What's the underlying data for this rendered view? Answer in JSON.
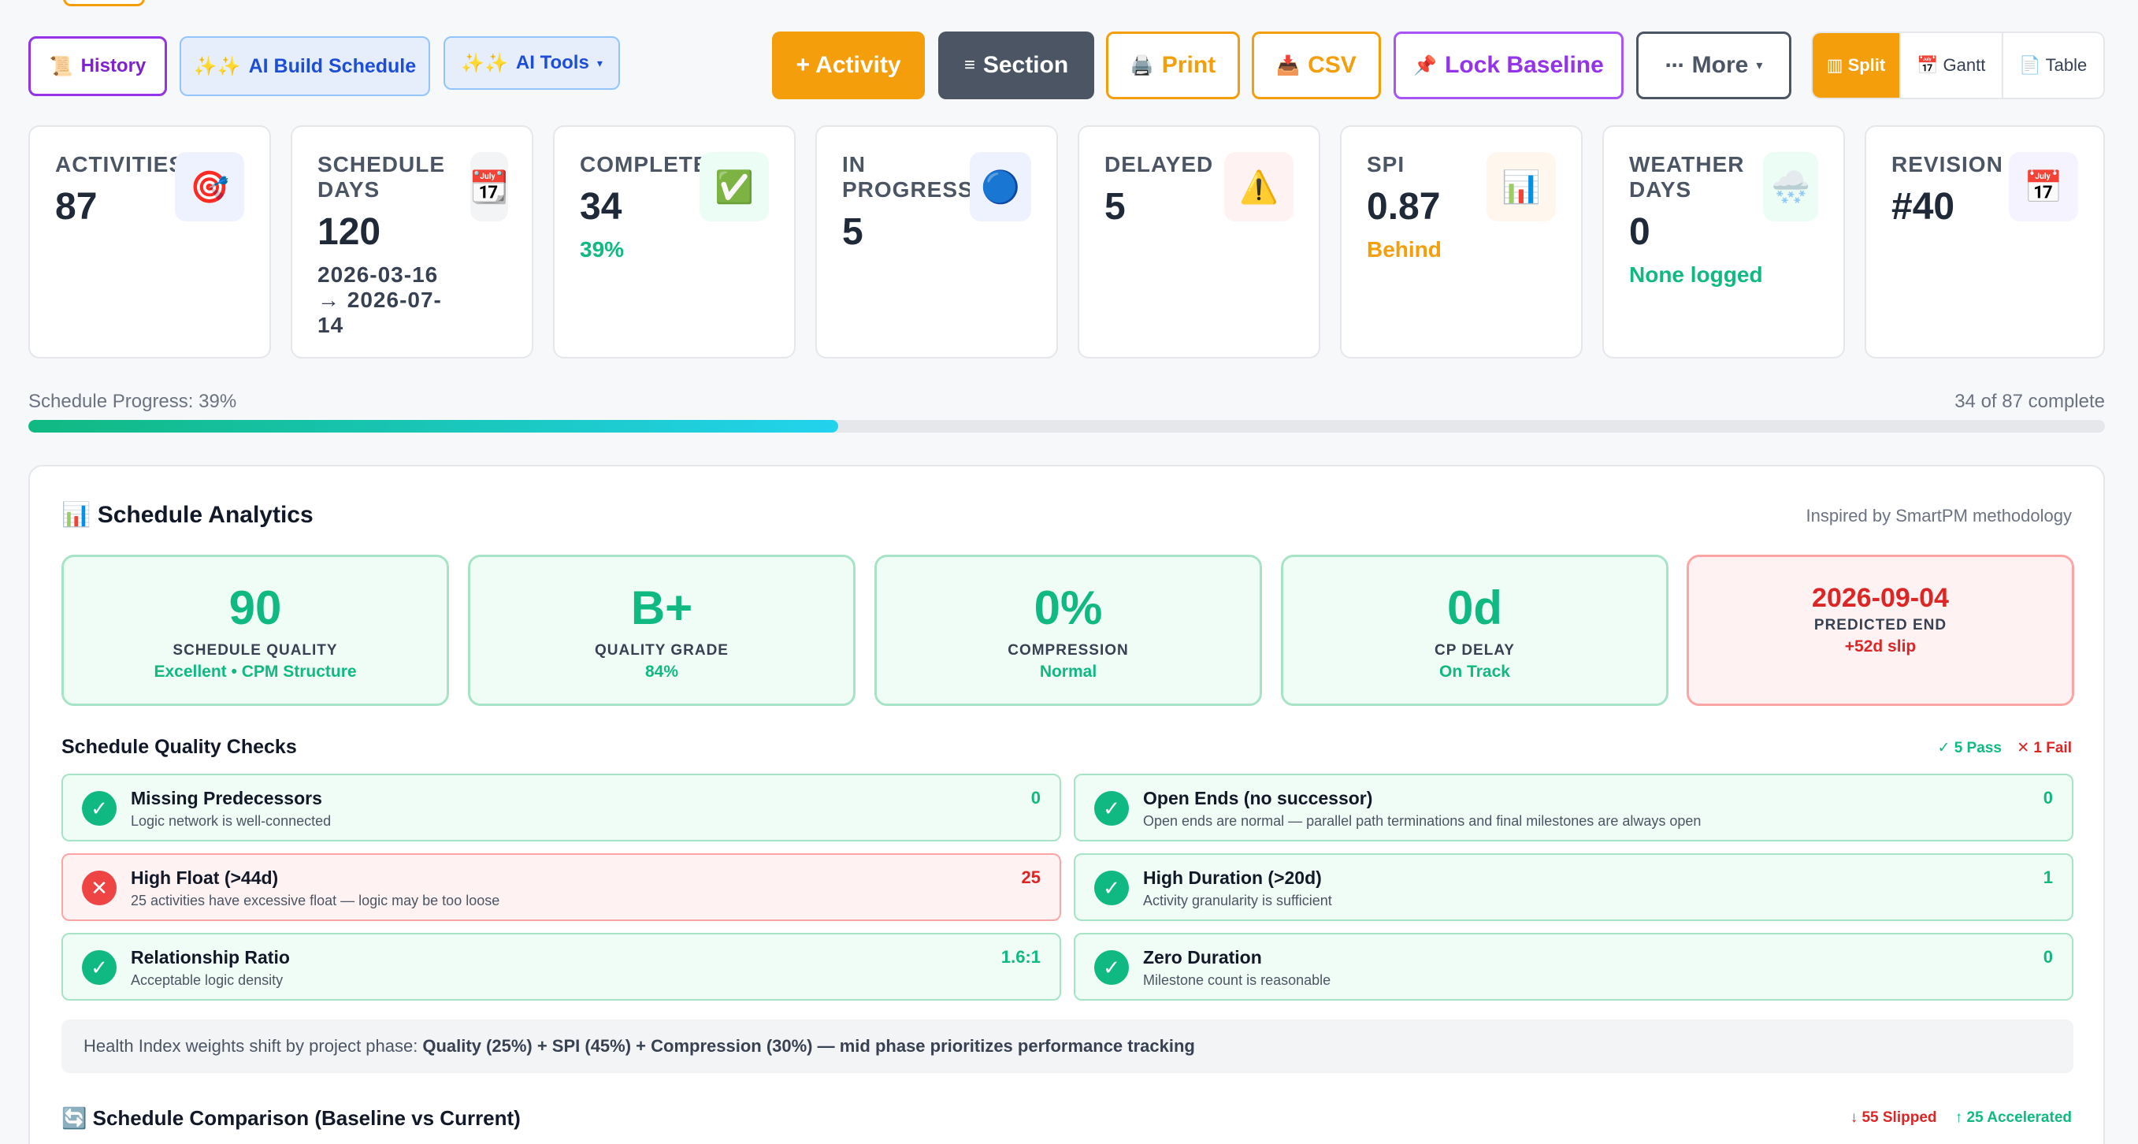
{
  "toolbar": {
    "history": {
      "icon": "📜",
      "label": "History"
    },
    "ai_build": {
      "icon": "✨✨",
      "label": "AI Build Schedule"
    },
    "ai_tools": {
      "icon": "✨✨",
      "label": "AI Tools",
      "caret": "▾"
    },
    "activity": {
      "label": "+ Activity"
    },
    "section": {
      "icon": "≡",
      "label": "Section"
    },
    "print": {
      "icon": "🖨️",
      "label": "Print"
    },
    "csv": {
      "icon": "📥",
      "label": "CSV"
    },
    "lock": {
      "icon": "📌",
      "label": "Lock Baseline"
    },
    "more": {
      "icon": "⋯",
      "label": "More",
      "caret": "▾"
    },
    "views": [
      {
        "icon": "▥",
        "label": "Split",
        "active": true
      },
      {
        "icon": "📅",
        "label": "Gantt",
        "active": false
      },
      {
        "icon": "📄",
        "label": "Table",
        "active": false
      }
    ]
  },
  "stats": [
    {
      "label": "ACTIVITIES",
      "value": "87",
      "sub": "",
      "icon": "🎯",
      "icon_bg": "#eef2ff"
    },
    {
      "label": "SCHEDULE DAYS",
      "value": "120",
      "sub": "2026-03-16 → 2026-07-14",
      "icon": "📆",
      "icon_bg": "#f3f4f6"
    },
    {
      "label": "COMPLETE",
      "value": "34",
      "sub": "39%",
      "icon": "✅",
      "icon_bg": "#ecfdf5"
    },
    {
      "label": "IN PROGRESS",
      "value": "5",
      "sub": "",
      "icon": "🔵",
      "icon_bg": "#eef2ff"
    },
    {
      "label": "DELAYED",
      "value": "5",
      "sub": "",
      "icon": "⚠️",
      "icon_bg": "#fef2f2"
    },
    {
      "label": "SPI",
      "value": "0.87",
      "sub": "Behind",
      "icon": "📊",
      "icon_bg": "#fff7ed"
    },
    {
      "label": "WEATHER DAYS",
      "value": "0",
      "sub": "None logged",
      "icon": "🌨️",
      "icon_bg": "#ecfdf5"
    },
    {
      "label": "REVISION",
      "value": "#40",
      "sub": "",
      "icon": "📅",
      "icon_bg": "#f5f3ff"
    }
  ],
  "progress": {
    "label": "Schedule Progress: 39%",
    "right": "34 of 87 complete",
    "fraction": 0.39
  },
  "analytics": {
    "title": "📊 Schedule Analytics",
    "note": "Inspired by SmartPM methodology",
    "metrics": [
      {
        "big": "90",
        "cap": "SCHEDULE QUALITY",
        "note": "Excellent • CPM Structure",
        "status": "good"
      },
      {
        "big": "B+",
        "cap": "QUALITY GRADE",
        "note": "84%",
        "status": "good"
      },
      {
        "big": "0%",
        "cap": "COMPRESSION",
        "note": "Normal",
        "status": "good"
      },
      {
        "big": "0d",
        "cap": "CP DELAY",
        "note": "On Track",
        "status": "good"
      },
      {
        "big": "2026-09-04",
        "cap": "PREDICTED END",
        "note": "+52d slip",
        "status": "bad"
      }
    ],
    "checks_title": "Schedule Quality Checks",
    "checks_pass": "✓ 5 Pass",
    "checks_fail": "✕ 1 Fail",
    "checks": [
      {
        "title": "Missing Predecessors",
        "desc": "Logic network is well-connected",
        "value": "0",
        "pass": true
      },
      {
        "title": "Open Ends (no successor)",
        "desc": "Open ends are normal — parallel path terminations and final milestones are always open",
        "value": "0",
        "pass": true
      },
      {
        "title": "High Float (>44d)",
        "desc": "25 activities have excessive float — logic may be too loose",
        "value": "25",
        "pass": false
      },
      {
        "title": "High Duration (>20d)",
        "desc": "Activity granularity is sufficient",
        "value": "1",
        "pass": true
      },
      {
        "title": "Relationship Ratio",
        "desc": "Acceptable logic density",
        "value": "1.6:1",
        "pass": true
      },
      {
        "title": "Zero Duration",
        "desc": "Milestone count is reasonable",
        "value": "0",
        "pass": true
      }
    ],
    "weights_prefix": "Health Index weights shift by project phase:",
    "weights_detail": "Quality (25%) + SPI (45%) + Compression (30%) — mid phase prioritizes performance tracking",
    "compare_title": "🔄 Schedule Comparison (Baseline vs Current)",
    "compare_slipped": "↓ 55 Slipped",
    "compare_accelerated": "↑ 25 Accelerated"
  },
  "colors": {
    "accent": "#f59e0b",
    "success": "#10b981",
    "danger": "#dc2626",
    "purple": "#9333ea",
    "blue": "#1d4ed8",
    "slate": "#4b5563"
  }
}
